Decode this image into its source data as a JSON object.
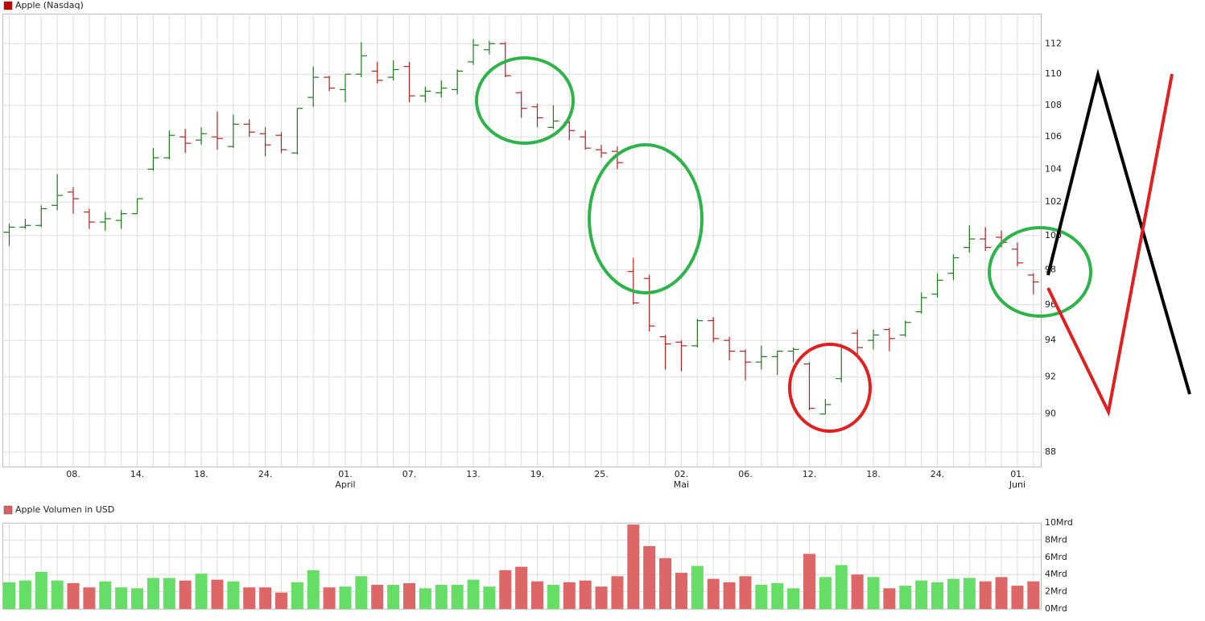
{
  "chart_data": [
    {
      "type": "ohlc",
      "categories": [
        null,
        null,
        null,
        null,
        "08.",
        null,
        null,
        null,
        "14.",
        null,
        null,
        null,
        "18.",
        null,
        null,
        null,
        "24.",
        null,
        null,
        null,
        null,
        "01.",
        null,
        null,
        null,
        "07.",
        null,
        null,
        null,
        "13.",
        null,
        null,
        null,
        "19.",
        null,
        null,
        null,
        "25.",
        null,
        null,
        null,
        null,
        "02.",
        null,
        null,
        null,
        "06.",
        null,
        null,
        null,
        "12.",
        null,
        null,
        null,
        "18.",
        null,
        null,
        null,
        "24.",
        null,
        null,
        null,
        null,
        "01.",
        null
      ],
      "category_months": [
        null,
        null,
        null,
        null,
        null,
        null,
        null,
        null,
        null,
        null,
        null,
        null,
        null,
        null,
        null,
        null,
        null,
        null,
        null,
        null,
        null,
        "April",
        null,
        null,
        null,
        null,
        null,
        null,
        null,
        null,
        null,
        null,
        null,
        null,
        null,
        null,
        null,
        null,
        null,
        null,
        null,
        null,
        "Mai",
        null,
        null,
        null,
        null,
        null,
        null,
        null,
        null,
        null,
        null,
        null,
        null,
        null,
        null,
        null,
        null,
        null,
        null,
        null,
        null,
        "Juni",
        null
      ],
      "series": [
        {
          "name": "Apple (Nasdaq)",
          "color": "#c00000",
          "color_up": "#1f7a1f",
          "color_down": "#b22222",
          "open": [
            100.2,
            100.5,
            100.6,
            101.8,
            102.6,
            101.4,
            100.8,
            100.9,
            101.3,
            104.0,
            104.7,
            106.0,
            105.8,
            106.0,
            105.4,
            106.8,
            106.2,
            106.1,
            105.0,
            108.5,
            109.8,
            109.0,
            110.0,
            110.2,
            109.8,
            110.5,
            108.6,
            108.8,
            109.0,
            110.8,
            111.6,
            112.0,
            108.8,
            107.9,
            106.6,
            106.9,
            106.0,
            105.2,
            105.1,
            97.9,
            97.5,
            94.2,
            93.9,
            93.7,
            95.1,
            94.0,
            93.4,
            92.8,
            93.1,
            93.4,
            92.7,
            90.0,
            91.9,
            94.4,
            94.0,
            94.6,
            94.3,
            95.6,
            96.6,
            97.8,
            99.3,
            99.8,
            99.9,
            99.2,
            97.7
          ],
          "high": [
            100.7,
            101.0,
            101.8,
            103.7,
            102.9,
            101.6,
            101.4,
            101.5,
            102.2,
            105.3,
            106.4,
            106.5,
            106.6,
            107.6,
            107.4,
            107.1,
            106.6,
            106.3,
            107.8,
            110.5,
            109.9,
            110.0,
            112.1,
            110.8,
            110.9,
            110.8,
            109.2,
            109.6,
            110.3,
            112.3,
            112.2,
            112.1,
            108.9,
            108.1,
            108.0,
            107.0,
            106.4,
            105.5,
            105.4,
            98.7,
            97.7,
            94.3,
            94.0,
            95.2,
            95.3,
            94.2,
            93.5,
            93.7,
            93.4,
            93.6,
            92.8,
            90.8,
            93.8,
            94.6,
            94.6,
            94.7,
            95.1,
            96.7,
            97.8,
            98.9,
            100.6,
            100.5,
            100.3,
            99.6,
            97.8
          ],
          "low": [
            99.4,
            100.4,
            100.5,
            101.5,
            101.3,
            100.4,
            100.3,
            100.4,
            101.3,
            103.9,
            104.6,
            105.0,
            105.5,
            105.2,
            105.3,
            106.0,
            104.8,
            105.0,
            104.9,
            107.9,
            108.9,
            108.2,
            109.8,
            109.4,
            109.6,
            108.2,
            108.2,
            108.5,
            108.7,
            110.6,
            111.3,
            109.8,
            107.2,
            106.6,
            106.5,
            105.8,
            105.2,
            104.7,
            104.0,
            96.0,
            94.5,
            92.4,
            92.3,
            93.6,
            93.9,
            92.9,
            91.8,
            92.4,
            92.1,
            92.8,
            90.2,
            90.0,
            91.7,
            93.1,
            93.5,
            93.4,
            94.2,
            95.5,
            96.4,
            97.4,
            99.0,
            99.1,
            99.3,
            98.2,
            96.6
          ],
          "close": [
            100.5,
            100.6,
            101.6,
            102.4,
            102.2,
            100.8,
            101.0,
            101.3,
            102.2,
            104.7,
            106.1,
            105.6,
            106.2,
            105.9,
            106.8,
            106.3,
            105.5,
            105.2,
            107.8,
            109.8,
            109.1,
            110.0,
            111.2,
            109.6,
            110.3,
            108.6,
            108.9,
            109.1,
            110.2,
            111.9,
            112.0,
            109.9,
            107.8,
            107.2,
            107.0,
            106.4,
            105.3,
            105.0,
            104.4,
            96.1,
            94.8,
            93.8,
            93.7,
            95.1,
            94.1,
            93.4,
            92.8,
            93.1,
            93.4,
            93.5,
            90.3,
            90.5,
            93.6,
            93.6,
            94.3,
            94.1,
            95.0,
            96.4,
            97.4,
            98.7,
            99.8,
            99.3,
            99.6,
            98.4,
            97.3
          ]
        }
      ],
      "ylim": [
        87.25,
        114
      ],
      "yscale": "log",
      "yticks": [
        88,
        90,
        92,
        94,
        96,
        98,
        100,
        102,
        104,
        106,
        108,
        110,
        112
      ],
      "grid": true
    },
    {
      "type": "bar",
      "series": [
        {
          "name": "Apple Volumen in USD",
          "color": "#d96060",
          "color_up": "#66dd66",
          "color_down": "#dd6666",
          "values": [
            3.1,
            3.3,
            4.3,
            3.3,
            3.0,
            2.5,
            3.2,
            2.5,
            2.4,
            3.6,
            3.6,
            3.3,
            4.1,
            3.4,
            3.2,
            2.5,
            2.5,
            1.9,
            3.1,
            4.5,
            2.5,
            2.6,
            3.8,
            2.8,
            2.8,
            3.0,
            2.4,
            2.8,
            2.8,
            3.4,
            2.6,
            4.5,
            4.9,
            3.2,
            2.8,
            3.1,
            3.3,
            2.6,
            3.8,
            9.8,
            7.3,
            5.9,
            4.2,
            5.0,
            3.5,
            3.1,
            3.8,
            2.8,
            3.0,
            2.4,
            6.4,
            3.7,
            5.1,
            4.0,
            3.7,
            2.4,
            2.7,
            3.3,
            3.1,
            3.5,
            3.6,
            3.2,
            3.7,
            2.7,
            3.2
          ]
        }
      ],
      "ylim": [
        0,
        10
      ],
      "yticks": [
        {
          "value": 0,
          "label": "0Mrd"
        },
        {
          "value": 2,
          "label": "2Mrd"
        },
        {
          "value": 4,
          "label": "4Mrd"
        },
        {
          "value": 6,
          "label": "6Mrd"
        },
        {
          "value": 8,
          "label": "8Mrd"
        },
        {
          "value": 10,
          "label": "10Mrd"
        }
      ],
      "grid": true
    }
  ]
}
